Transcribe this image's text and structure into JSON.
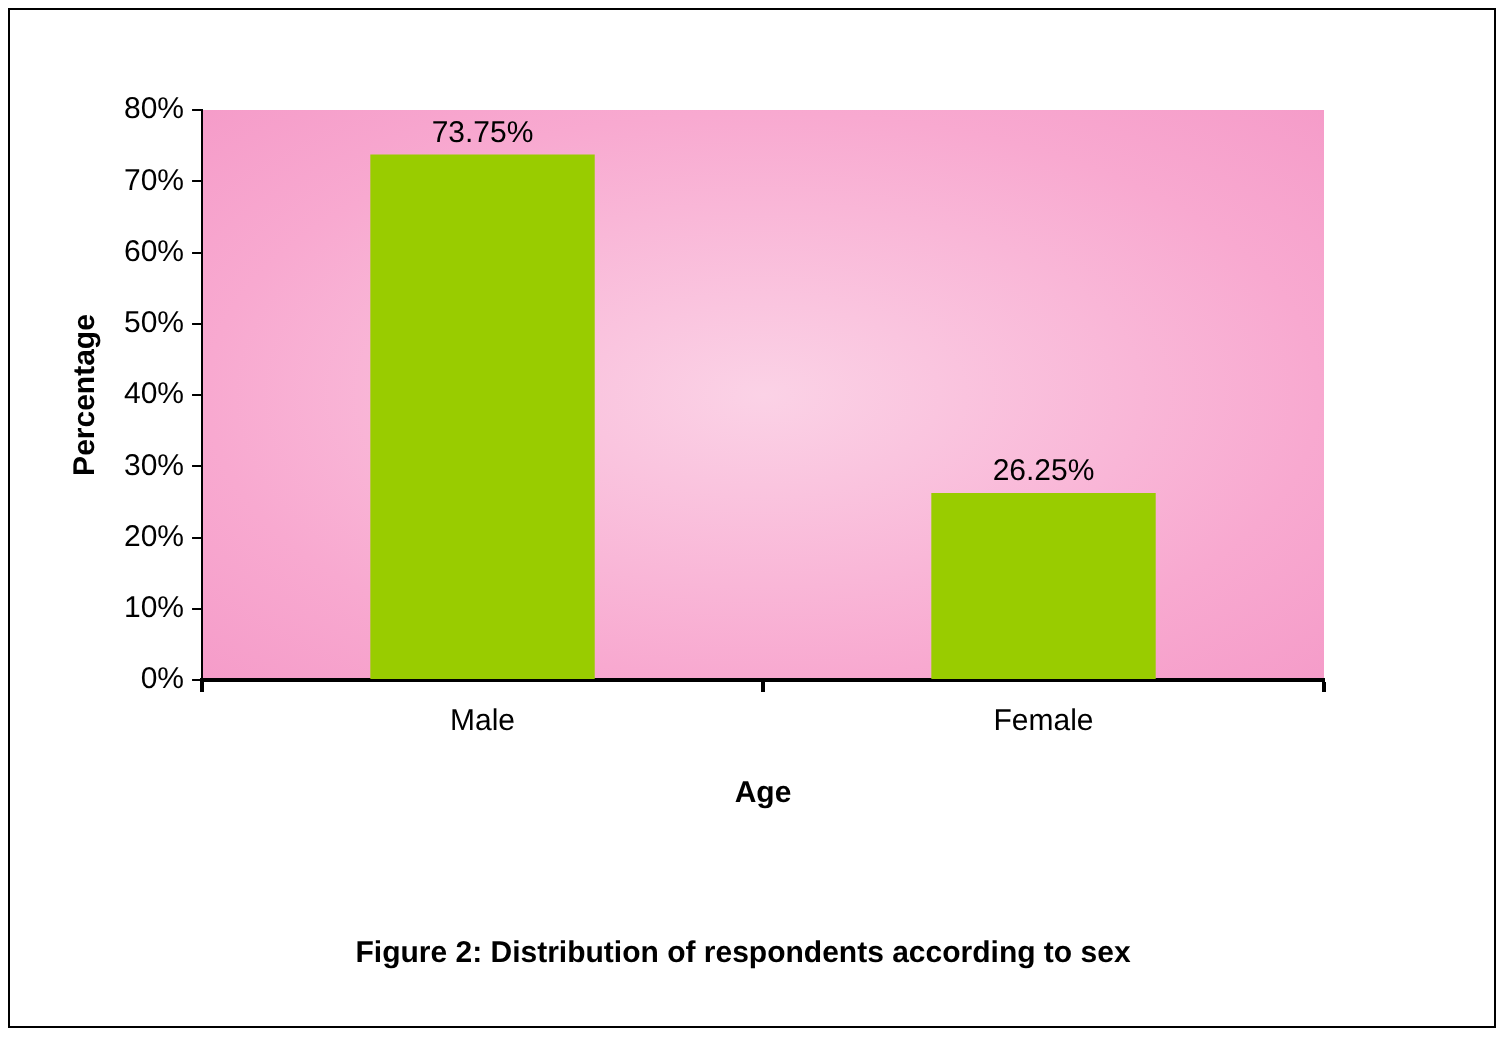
{
  "chart_data": {
    "type": "bar",
    "xlabel": "Age",
    "ylabel": "Percentage",
    "categories": [
      "Male",
      "Female"
    ],
    "values": [
      73.75,
      26.25
    ],
    "value_labels": [
      "73.75%",
      "26.25%"
    ],
    "color": "#99cc00",
    "ylim": [
      0,
      80
    ],
    "yticks": [
      {
        "value": 0,
        "label": "0%"
      },
      {
        "value": 10,
        "label": "10%"
      },
      {
        "value": 20,
        "label": "20%"
      },
      {
        "value": 30,
        "label": "30%"
      },
      {
        "value": 40,
        "label": "40%"
      },
      {
        "value": 50,
        "label": "50%"
      },
      {
        "value": 60,
        "label": "60%"
      },
      {
        "value": 70,
        "label": "70%"
      },
      {
        "value": 80,
        "label": "80%"
      }
    ],
    "grid": false,
    "legend": false,
    "annotations": [
      "Figure 2: Distribution of respondents according to sex"
    ]
  }
}
